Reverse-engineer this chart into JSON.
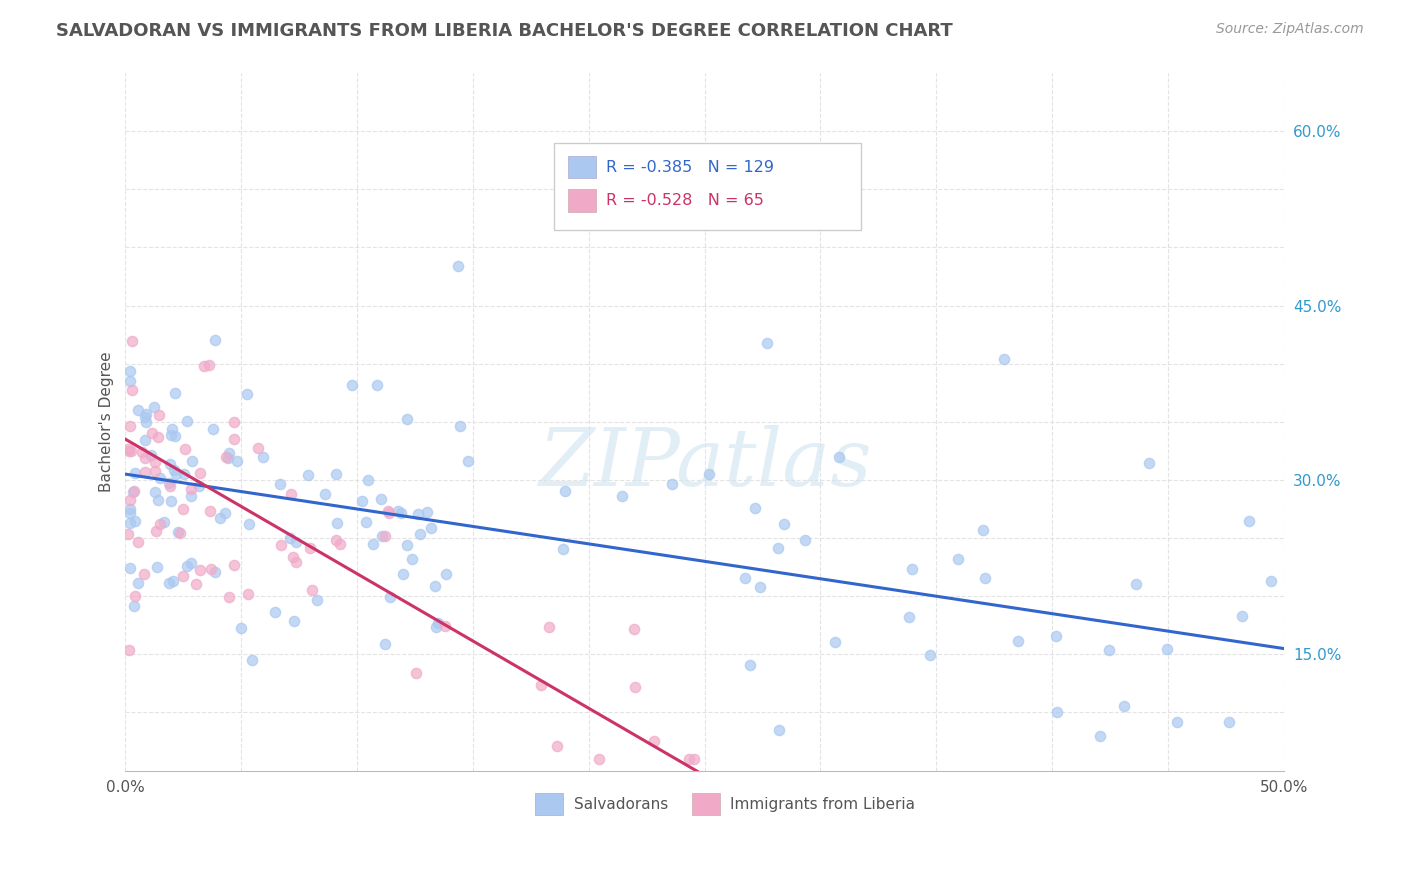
{
  "title": "SALVADORAN VS IMMIGRANTS FROM LIBERIA BACHELOR'S DEGREE CORRELATION CHART",
  "source_text": "Source: ZipAtlas.com",
  "ylabel": "Bachelor's Degree",
  "xmin": 0.0,
  "xmax": 0.5,
  "ymin": 0.05,
  "ymax": 0.65,
  "series1_color": "#aac8f0",
  "series2_color": "#f0aac8",
  "series1_line_color": "#3366cc",
  "series2_line_color": "#cc3366",
  "series1_label": "Salvadorans",
  "series2_label": "Immigrants from Liberia",
  "R1": "-0.385",
  "N1": "129",
  "R2": "-0.528",
  "N2": "65",
  "watermark": "ZIPatlas",
  "background_color": "#ffffff",
  "grid_color": "#dddddd",
  "title_color": "#555555",
  "blue_line_y0": 0.305,
  "blue_line_y1": 0.155,
  "pink_line_y0": 0.335,
  "pink_line_x1": 0.255,
  "pink_line_y1": 0.04
}
